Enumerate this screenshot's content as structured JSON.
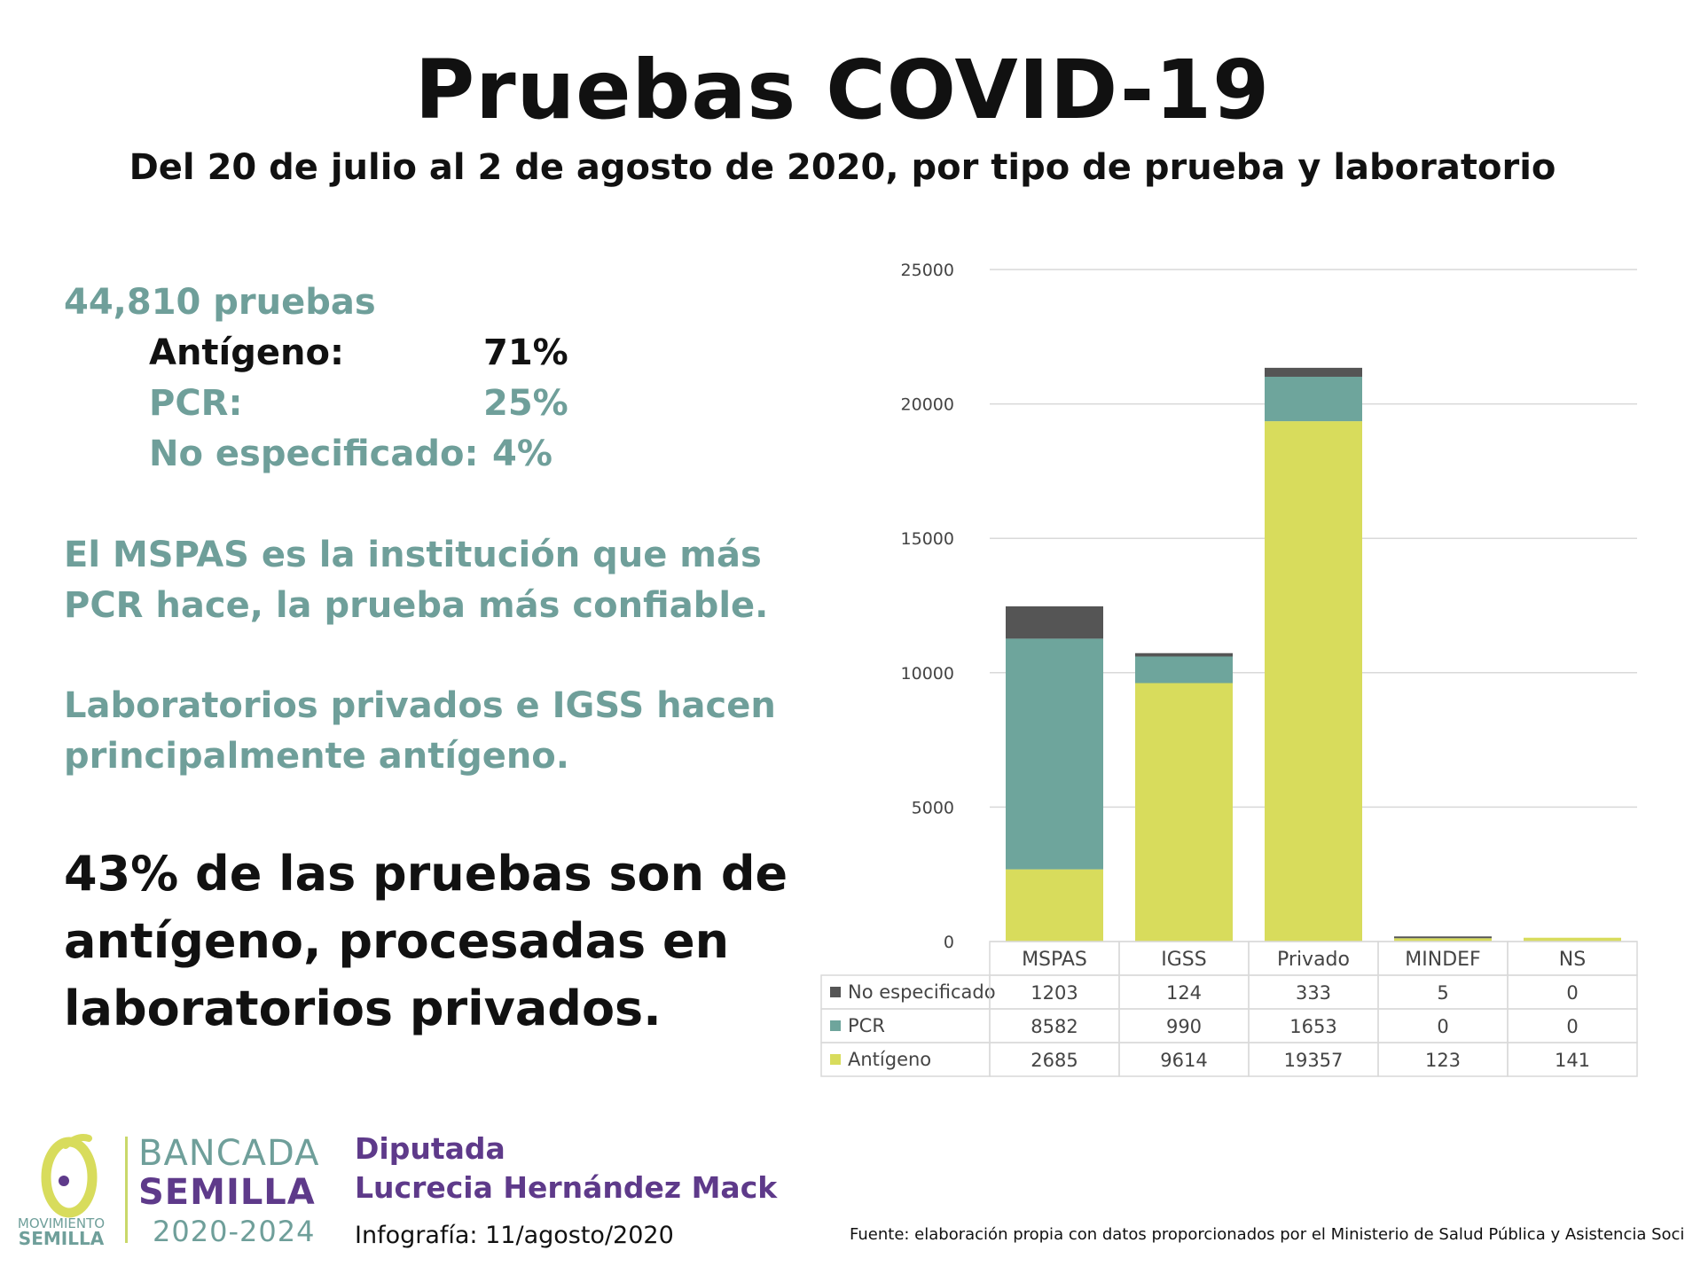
{
  "header": {
    "title": "Pruebas COVID-19",
    "subtitle": "Del 20 de julio al 2 de agosto de 2020, por tipo de prueba y laboratorio"
  },
  "summary": {
    "total": "44,810 pruebas",
    "rows": [
      {
        "label": "Antígeno:",
        "value": "71%"
      },
      {
        "label": "PCR:",
        "value": "25%"
      },
      {
        "label": "No especificado:",
        "value": "4%"
      }
    ],
    "note1": [
      "El MSPAS es la institución que más",
      "PCR hace, la prueba más confiable."
    ],
    "note2": [
      "Laboratorios privados e IGSS hacen",
      "principalmente antígeno."
    ],
    "highlight": [
      "43% de las pruebas son de",
      "antígeno, procesadas en",
      "laboratorios privados."
    ]
  },
  "chart_data": {
    "type": "bar",
    "stacked": true,
    "categories": [
      "MSPAS",
      "IGSS",
      "Privado",
      "MINDEF",
      "NS"
    ],
    "series": [
      {
        "name": "Antígeno",
        "values": [
          2685,
          9614,
          19357,
          123,
          141
        ],
        "color": "#d8dc5c"
      },
      {
        "name": "PCR",
        "values": [
          8582,
          990,
          1653,
          0,
          0
        ],
        "color": "#6ea59c"
      },
      {
        "name": "No especificado",
        "values": [
          1203,
          124,
          333,
          5,
          0
        ],
        "color": "#555555"
      }
    ],
    "table_order": [
      "No especificado",
      "PCR",
      "Antígeno"
    ],
    "table_display": {
      "No especificado": [
        "1203",
        "124",
        "333",
        "5",
        "0"
      ],
      "PCR": [
        "8582",
        "990",
        "1653",
        "0",
        "0"
      ],
      "Antígeno": [
        "2685",
        "9614",
        "19357",
        "123",
        "141"
      ]
    },
    "yticks": [
      "0",
      "5000",
      "10000",
      "15000",
      "20000",
      "25000"
    ],
    "ylim": [
      0,
      25000
    ],
    "grid": true
  },
  "footer": {
    "logo_text": [
      "MOVIMIENTO",
      "SEMILLA"
    ],
    "brand_line1": "BANCADA",
    "brand_line2": "SEMILLA",
    "brand_years": "2020-2024",
    "role": "Diputada",
    "name": "Lucrecia Hernández Mack",
    "infografia": "Infografía: 11/agosto/2020",
    "source": "Fuente: elaboración propia con datos proporcionados por el Ministerio de Salud Pública y Asistencia Social"
  },
  "colors": {
    "teal": "#6f9f9a",
    "purple": "#5e3a8a",
    "lime": "#d8dc5c"
  }
}
